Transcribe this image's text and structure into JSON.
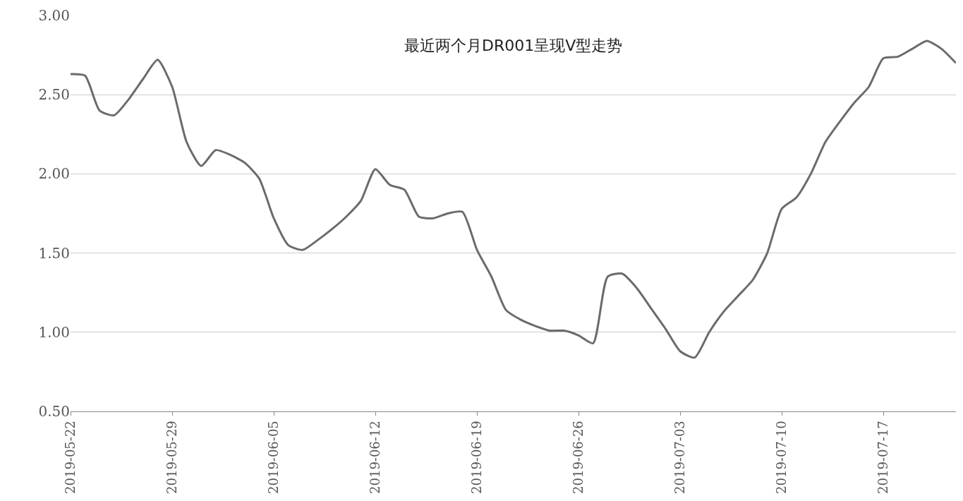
{
  "chart_data": {
    "type": "line",
    "x": [
      "2019-05-22",
      "2019-05-23",
      "2019-05-24",
      "2019-05-25",
      "2019-05-26",
      "2019-05-27",
      "2019-05-28",
      "2019-05-29",
      "2019-05-30",
      "2019-05-31",
      "2019-06-01",
      "2019-06-02",
      "2019-06-03",
      "2019-06-04",
      "2019-06-05",
      "2019-06-06",
      "2019-06-07",
      "2019-06-08",
      "2019-06-09",
      "2019-06-10",
      "2019-06-11",
      "2019-06-12",
      "2019-06-13",
      "2019-06-14",
      "2019-06-15",
      "2019-06-16",
      "2019-06-17",
      "2019-06-18",
      "2019-06-19",
      "2019-06-20",
      "2019-06-21",
      "2019-06-22",
      "2019-06-23",
      "2019-06-24",
      "2019-06-25",
      "2019-06-26",
      "2019-06-27",
      "2019-06-28",
      "2019-06-29",
      "2019-06-30",
      "2019-07-01",
      "2019-07-02",
      "2019-07-03",
      "2019-07-04",
      "2019-07-05",
      "2019-07-06",
      "2019-07-07",
      "2019-07-08",
      "2019-07-09",
      "2019-07-10",
      "2019-07-11",
      "2019-07-12",
      "2019-07-13",
      "2019-07-14",
      "2019-07-15",
      "2019-07-16",
      "2019-07-17",
      "2019-07-18",
      "2019-07-19",
      "2019-07-20",
      "2019-07-21",
      "2019-07-22"
    ],
    "series": [
      {
        "color": "#6b6b6b",
        "values": [
          2.63,
          2.62,
          2.4,
          2.37,
          2.47,
          2.6,
          2.72,
          2.55,
          2.2,
          2.05,
          2.15,
          2.12,
          2.07,
          1.97,
          1.72,
          1.55,
          1.52,
          1.58,
          1.65,
          1.73,
          1.83,
          2.03,
          1.93,
          1.9,
          1.73,
          1.72,
          1.75,
          1.76,
          1.52,
          1.35,
          1.14,
          1.08,
          1.04,
          1.01,
          1.01,
          0.98,
          0.93,
          1.35,
          1.37,
          1.28,
          1.15,
          1.02,
          0.88,
          0.84,
          1.0,
          1.13,
          1.23,
          1.33,
          1.5,
          1.78,
          1.85,
          2.0,
          2.2,
          2.33,
          2.45,
          2.55,
          2.73,
          2.74,
          2.79,
          2.84,
          2.79,
          2.7
        ]
      }
    ],
    "xlim": [
      "2019-05-22",
      "2019-07-22"
    ],
    "xticks": [
      "2019-05-22",
      "2019-05-29",
      "2019-06-05",
      "2019-06-12",
      "2019-06-19",
      "2019-06-26",
      "2019-07-03",
      "2019-07-10",
      "2019-07-17"
    ],
    "ylim": [
      0.5,
      3.0
    ],
    "yticks": [
      {
        "value": 0.5,
        "label": "0.50"
      },
      {
        "value": 1.0,
        "label": "1.00"
      },
      {
        "value": 1.5,
        "label": "1.50"
      },
      {
        "value": 2.0,
        "label": "2.00"
      },
      {
        "value": 2.5,
        "label": "2.50"
      },
      {
        "value": 3.0,
        "label": "3.00"
      }
    ],
    "grid": "y",
    "annotations": [
      {
        "text": "最近两个月DR001呈现V型走势"
      }
    ]
  }
}
